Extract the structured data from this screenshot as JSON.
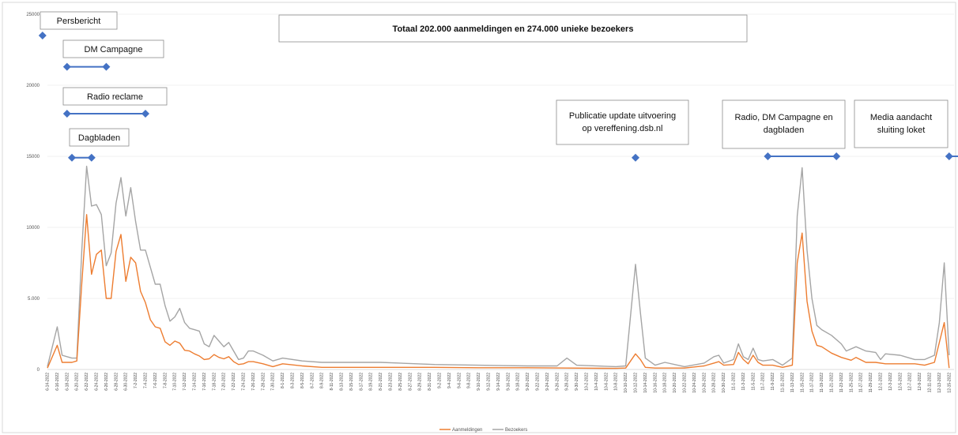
{
  "chart_data": {
    "type": "line",
    "title": "Totaal 202.000 aanmeldingen en 274.000 unieke bezoekers",
    "ylim": [
      0,
      25000
    ],
    "yticks": [
      "0",
      "5.000",
      "10000",
      "15000",
      "20000",
      "25000"
    ],
    "grid": true,
    "legend_position": "bottom",
    "x_start": "6-14-2022",
    "x_end": "12-16-2022",
    "x_tick_labels": [
      "6-14-2022",
      "6-16-2022",
      "6-18-2022",
      "6-20-2022",
      "6-22-2022",
      "6-24-2022",
      "6-26-2022",
      "6-28-2022",
      "6-30-2022",
      "7-2-2022",
      "7-4-2022",
      "7-6-2022",
      "7-8-2022",
      "7-10-2022",
      "7-12-2022",
      "7-14-2022",
      "7-16-2022",
      "7-18-2022",
      "7-20-2022",
      "7-22-2022",
      "7-24-2022",
      "7-26-2022",
      "7-28-2022",
      "7-30-2022",
      "8-1-2022",
      "8-3-2022",
      "8-5-2022",
      "8-7-2022",
      "8-9-2022",
      "8-11-2022",
      "8-13-2022",
      "8-15-2022",
      "8-17-2022",
      "8-19-2022",
      "8-21-2022",
      "8-23-2022",
      "8-25-2022",
      "8-27-2022",
      "8-29-2022",
      "8-31-2022",
      "9-2-2022",
      "9-4-2022",
      "9-6-2022",
      "9-8-2022",
      "9-10-2022",
      "9-12-2022",
      "9-14-2022",
      "9-16-2022",
      "9-18-2022",
      "9-20-2022",
      "9-22-2022",
      "9-24-2022",
      "9-26-2022",
      "9-28-2022",
      "9-30-2022",
      "10-2-2022",
      "10-4-2022",
      "10-6-2022",
      "10-8-2022",
      "10-10-2022",
      "10-12-2022",
      "10-14-2022",
      "10-16-2022",
      "10-18-2022",
      "10-20-2022",
      "10-22-2022",
      "10-24-2022",
      "10-26-2022",
      "10-28-2022",
      "10-30-2022",
      "11-1-2022",
      "11-3-2022",
      "11-5-2022",
      "11-7-2022",
      "11-9-2022",
      "11-11-2022",
      "11-13-2022",
      "11-15-2022",
      "11-17-2022",
      "11-19-2022",
      "11-21-2022",
      "11-23-2022",
      "11-25-2022",
      "11-27-2022",
      "11-29-2022",
      "12-1-2022",
      "12-3-2022",
      "12-5-2022",
      "12-7-2022",
      "12-9-2022",
      "12-11-2022",
      "12-13-2022",
      "12-15-2022"
    ],
    "series": [
      {
        "name": "Aanmeldingen",
        "color": "#ed7d31",
        "points": [
          [
            "6-14-2022",
            100
          ],
          [
            "6-16-2022",
            1700
          ],
          [
            "6-17-2022",
            500
          ],
          [
            "6-18-2022",
            500
          ],
          [
            "6-19-2022",
            500
          ],
          [
            "6-20-2022",
            600
          ],
          [
            "6-21-2022",
            6000
          ],
          [
            "6-22-2022",
            10900
          ],
          [
            "6-23-2022",
            6700
          ],
          [
            "6-24-2022",
            8100
          ],
          [
            "6-25-2022",
            8400
          ],
          [
            "6-26-2022",
            5000
          ],
          [
            "6-27-2022",
            5000
          ],
          [
            "6-28-2022",
            8300
          ],
          [
            "6-29-2022",
            9500
          ],
          [
            "6-30-2022",
            6200
          ],
          [
            "7-1-2022",
            7900
          ],
          [
            "7-2-2022",
            7500
          ],
          [
            "7-3-2022",
            5500
          ],
          [
            "7-4-2022",
            4700
          ],
          [
            "7-5-2022",
            3500
          ],
          [
            "7-6-2022",
            3000
          ],
          [
            "7-7-2022",
            2900
          ],
          [
            "7-8-2022",
            1950
          ],
          [
            "7-9-2022",
            1700
          ],
          [
            "7-10-2022",
            2000
          ],
          [
            "7-11-2022",
            1850
          ],
          [
            "7-12-2022",
            1350
          ],
          [
            "7-13-2022",
            1300
          ],
          [
            "7-14-2022",
            1100
          ],
          [
            "7-15-2022",
            950
          ],
          [
            "7-16-2022",
            700
          ],
          [
            "7-17-2022",
            750
          ],
          [
            "7-18-2022",
            1050
          ],
          [
            "7-19-2022",
            850
          ],
          [
            "7-20-2022",
            750
          ],
          [
            "7-21-2022",
            900
          ],
          [
            "7-22-2022",
            550
          ],
          [
            "7-23-2022",
            350
          ],
          [
            "7-24-2022",
            400
          ],
          [
            "7-25-2022",
            550
          ],
          [
            "7-26-2022",
            550
          ],
          [
            "7-28-2022",
            400
          ],
          [
            "7-30-2022",
            200
          ],
          [
            "8-1-2022",
            400
          ],
          [
            "8-5-2022",
            250
          ],
          [
            "8-9-2022",
            150
          ],
          [
            "8-15-2022",
            150
          ],
          [
            "8-21-2022",
            150
          ],
          [
            "9-1-2022",
            150
          ],
          [
            "9-10-2022",
            120
          ],
          [
            "9-20-2022",
            120
          ],
          [
            "9-28-2022",
            100
          ],
          [
            "10-8-2022",
            80
          ],
          [
            "10-10-2022",
            100
          ],
          [
            "10-12-2022",
            1100
          ],
          [
            "10-13-2022",
            700
          ],
          [
            "10-14-2022",
            150
          ],
          [
            "10-16-2022",
            100
          ],
          [
            "10-22-2022",
            100
          ],
          [
            "10-26-2022",
            250
          ],
          [
            "10-28-2022",
            450
          ],
          [
            "10-29-2022",
            550
          ],
          [
            "10-30-2022",
            300
          ],
          [
            "11-1-2022",
            350
          ],
          [
            "11-2-2022",
            1200
          ],
          [
            "11-3-2022",
            700
          ],
          [
            "11-4-2022",
            400
          ],
          [
            "11-5-2022",
            1000
          ],
          [
            "11-6-2022",
            500
          ],
          [
            "11-7-2022",
            300
          ],
          [
            "11-9-2022",
            300
          ],
          [
            "11-11-2022",
            150
          ],
          [
            "11-13-2022",
            300
          ],
          [
            "11-14-2022",
            7500
          ],
          [
            "11-15-2022",
            9600
          ],
          [
            "11-16-2022",
            4800
          ],
          [
            "11-17-2022",
            2700
          ],
          [
            "11-18-2022",
            1700
          ],
          [
            "11-19-2022",
            1600
          ],
          [
            "11-21-2022",
            1150
          ],
          [
            "11-23-2022",
            850
          ],
          [
            "11-25-2022",
            650
          ],
          [
            "11-26-2022",
            850
          ],
          [
            "11-28-2022",
            500
          ],
          [
            "11-30-2022",
            500
          ],
          [
            "12-2-2022",
            400
          ],
          [
            "12-5-2022",
            400
          ],
          [
            "12-8-2022",
            400
          ],
          [
            "12-10-2022",
            300
          ],
          [
            "12-12-2022",
            500
          ],
          [
            "12-14-2022",
            3300
          ],
          [
            "12-15-2022",
            100
          ]
        ]
      },
      {
        "name": "Bezoekers",
        "color": "#a5a5a5",
        "points": [
          [
            "6-14-2022",
            200
          ],
          [
            "6-16-2022",
            3000
          ],
          [
            "6-17-2022",
            1000
          ],
          [
            "6-18-2022",
            900
          ],
          [
            "6-19-2022",
            800
          ],
          [
            "6-20-2022",
            800
          ],
          [
            "6-21-2022",
            8300
          ],
          [
            "6-22-2022",
            14300
          ],
          [
            "6-23-2022",
            11500
          ],
          [
            "6-24-2022",
            11600
          ],
          [
            "6-25-2022",
            10900
          ],
          [
            "6-26-2022",
            7300
          ],
          [
            "6-27-2022",
            8200
          ],
          [
            "6-28-2022",
            11700
          ],
          [
            "6-29-2022",
            13500
          ],
          [
            "6-30-2022",
            10800
          ],
          [
            "7-1-2022",
            12800
          ],
          [
            "7-2-2022",
            10400
          ],
          [
            "7-3-2022",
            8400
          ],
          [
            "7-4-2022",
            8400
          ],
          [
            "7-5-2022",
            7200
          ],
          [
            "7-6-2022",
            6000
          ],
          [
            "7-7-2022",
            6000
          ],
          [
            "7-8-2022",
            4500
          ],
          [
            "7-9-2022",
            3400
          ],
          [
            "7-10-2022",
            3700
          ],
          [
            "7-11-2022",
            4300
          ],
          [
            "7-12-2022",
            3300
          ],
          [
            "7-13-2022",
            2900
          ],
          [
            "7-14-2022",
            2800
          ],
          [
            "7-15-2022",
            2700
          ],
          [
            "7-16-2022",
            1800
          ],
          [
            "7-17-2022",
            1600
          ],
          [
            "7-18-2022",
            2400
          ],
          [
            "7-19-2022",
            2000
          ],
          [
            "7-20-2022",
            1600
          ],
          [
            "7-21-2022",
            1900
          ],
          [
            "7-22-2022",
            1300
          ],
          [
            "7-23-2022",
            700
          ],
          [
            "7-24-2022",
            800
          ],
          [
            "7-25-2022",
            1300
          ],
          [
            "7-26-2022",
            1300
          ],
          [
            "7-28-2022",
            1000
          ],
          [
            "7-30-2022",
            600
          ],
          [
            "8-1-2022",
            800
          ],
          [
            "8-5-2022",
            600
          ],
          [
            "8-9-2022",
            500
          ],
          [
            "8-15-2022",
            500
          ],
          [
            "8-21-2022",
            500
          ],
          [
            "9-1-2022",
            350
          ],
          [
            "9-10-2022",
            300
          ],
          [
            "9-20-2022",
            250
          ],
          [
            "9-26-2022",
            250
          ],
          [
            "9-28-2022",
            800
          ],
          [
            "9-30-2022",
            300
          ],
          [
            "10-8-2022",
            200
          ],
          [
            "10-10-2022",
            250
          ],
          [
            "10-12-2022",
            7400
          ],
          [
            "10-13-2022",
            4000
          ],
          [
            "10-14-2022",
            800
          ],
          [
            "10-16-2022",
            300
          ],
          [
            "10-18-2022",
            500
          ],
          [
            "10-22-2022",
            200
          ],
          [
            "10-26-2022",
            450
          ],
          [
            "10-28-2022",
            900
          ],
          [
            "10-29-2022",
            1000
          ],
          [
            "10-30-2022",
            450
          ],
          [
            "11-1-2022",
            700
          ],
          [
            "11-2-2022",
            1800
          ],
          [
            "11-3-2022",
            900
          ],
          [
            "11-4-2022",
            700
          ],
          [
            "11-5-2022",
            1500
          ],
          [
            "11-6-2022",
            700
          ],
          [
            "11-7-2022",
            600
          ],
          [
            "11-9-2022",
            700
          ],
          [
            "11-11-2022",
            300
          ],
          [
            "11-13-2022",
            800
          ],
          [
            "11-14-2022",
            10800
          ],
          [
            "11-15-2022",
            14200
          ],
          [
            "11-16-2022",
            8400
          ],
          [
            "11-17-2022",
            5000
          ],
          [
            "11-18-2022",
            3100
          ],
          [
            "11-19-2022",
            2800
          ],
          [
            "11-21-2022",
            2400
          ],
          [
            "11-23-2022",
            1800
          ],
          [
            "11-24-2022",
            1300
          ],
          [
            "11-26-2022",
            1600
          ],
          [
            "11-28-2022",
            1300
          ],
          [
            "11-30-2022",
            1200
          ],
          [
            "12-1-2022",
            700
          ],
          [
            "12-2-2022",
            1100
          ],
          [
            "12-5-2022",
            1000
          ],
          [
            "12-8-2022",
            700
          ],
          [
            "12-10-2022",
            700
          ],
          [
            "12-12-2022",
            1000
          ],
          [
            "12-13-2022",
            3300
          ],
          [
            "12-14-2022",
            7500
          ],
          [
            "12-15-2022",
            1000
          ]
        ]
      }
    ],
    "annotations": [
      {
        "label": "Persbericht",
        "marker_dates": [
          "6-13-2022"
        ],
        "marker_value": 23500
      },
      {
        "label": "DM Campagne",
        "marker_dates": [
          "6-18-2022",
          "6-26-2022"
        ],
        "marker_value": 21300
      },
      {
        "label": "Radio reclame",
        "marker_dates": [
          "6-18-2022",
          "7-4-2022"
        ],
        "marker_value": 18000
      },
      {
        "label": "Dagbladen",
        "marker_dates": [
          "6-19-2022",
          "6-23-2022"
        ],
        "marker_value": 14900
      },
      {
        "label_lines": [
          "Publicatie update uitvoering",
          "op vereffening.dsb.nl"
        ],
        "marker_dates": [
          "10-12-2022"
        ],
        "marker_value": 14900
      },
      {
        "label_lines": [
          "Radio, DM Campagne en",
          "dagbladen"
        ],
        "marker_dates": [
          "11-8-2022",
          "11-22-2022"
        ],
        "marker_value": 15000
      },
      {
        "label_lines": [
          "Media aandacht",
          "sluiting loket"
        ],
        "marker_dates": [
          "12-15-2022",
          "12-19-2022"
        ],
        "marker_value": 15000
      }
    ],
    "annotation_color": "#4472c4"
  }
}
